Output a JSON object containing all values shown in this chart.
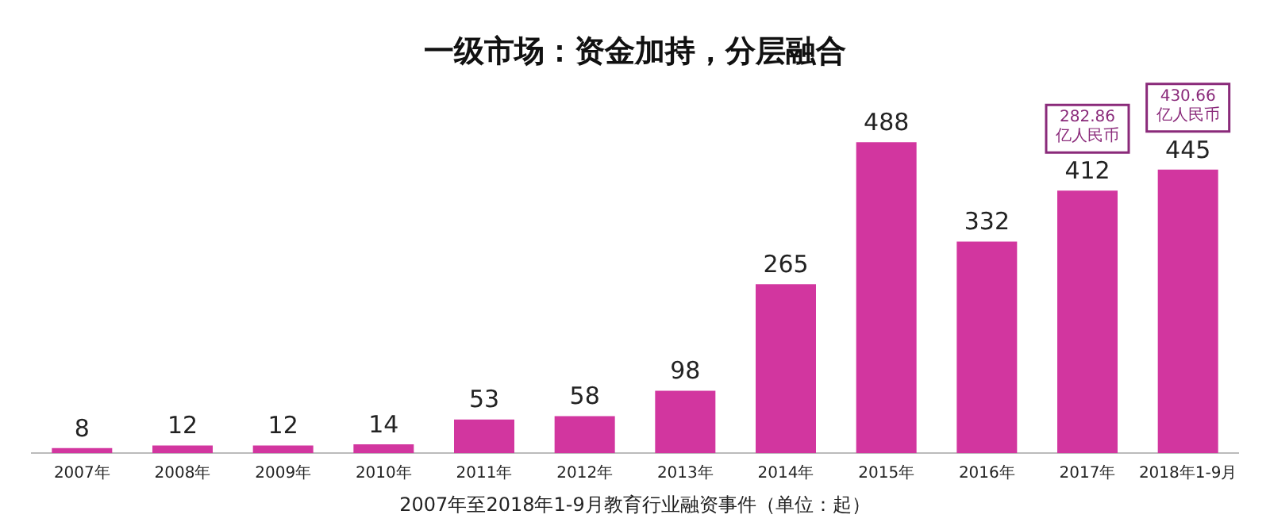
{
  "chart_data": {
    "type": "bar",
    "title": "一级市场：资金加持，分层融合",
    "xlabel": "2007年至2018年1-9月教育行业融资事件（单位：起）",
    "categories": [
      "2007年",
      "2008年",
      "2009年",
      "2010年",
      "2011年",
      "2012年",
      "2013年",
      "2014年",
      "2015年",
      "2016年",
      "2017年",
      "2018年1-9月"
    ],
    "values": [
      8,
      12,
      12,
      14,
      53,
      58,
      98,
      265,
      488,
      332,
      412,
      445
    ],
    "color": "#d2369f",
    "data_labels": true,
    "grid": false,
    "legend": false,
    "annotations": [
      "282.86亿人民币",
      "430.66亿人民币"
    ]
  }
}
